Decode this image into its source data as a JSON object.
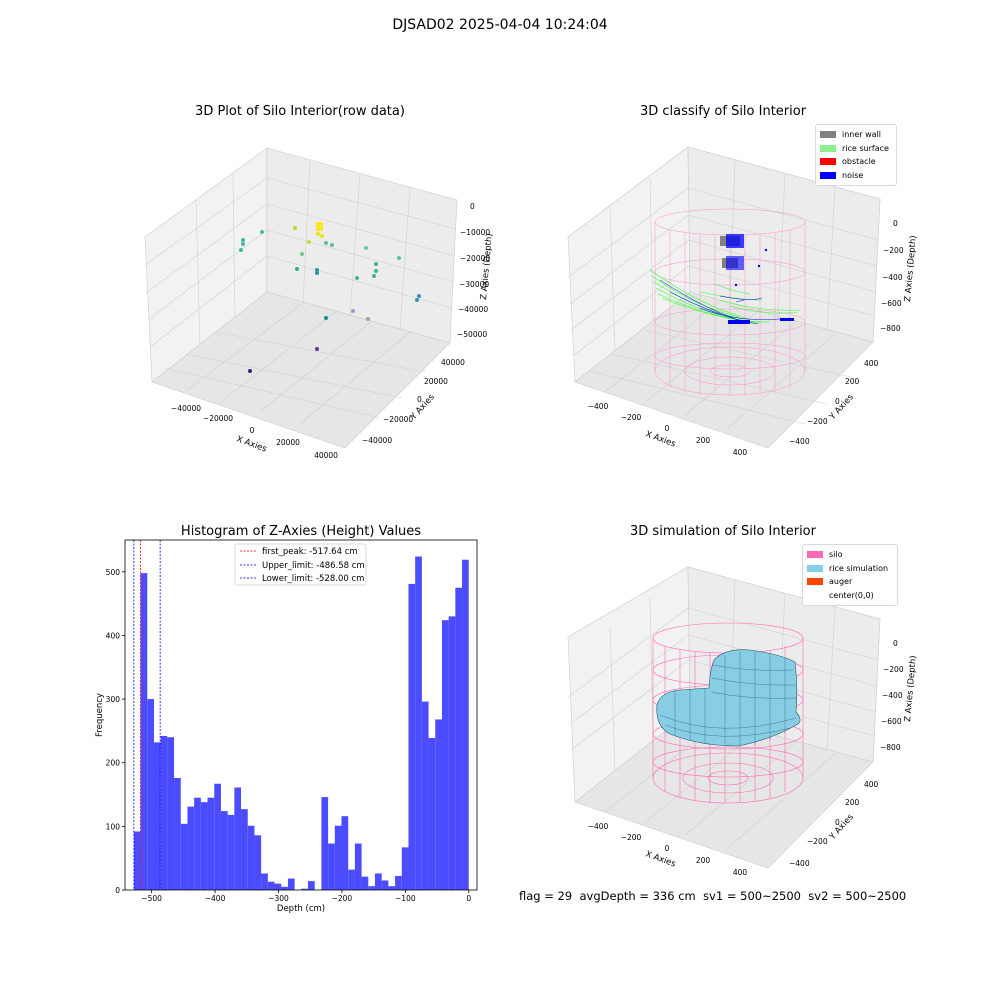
{
  "suptitle": "DJSAD02 2025-04-04 10:24:04",
  "panels": {
    "raw": {
      "title": "3D Plot of Silo Interior(row data)",
      "xlabel": "X Axies",
      "ylabel": "Y Axies",
      "zlabel": "Z Axies (Depth)",
      "xticks": [
        "−40000",
        "−20000",
        "0",
        "20000",
        "40000"
      ],
      "yticks": [
        "−40000",
        "−20000",
        "0",
        "20000",
        "40000"
      ],
      "zticks": [
        "0",
        "−10000",
        "−20000",
        "−30000",
        "−40000",
        "−50000"
      ]
    },
    "classify": {
      "title": "3D classify of Silo Interior",
      "xlabel": "X Axies",
      "ylabel": "Y Axies",
      "zlabel": "Z Axies (Depth)",
      "xticks": [
        "−400",
        "−200",
        "0",
        "200",
        "400"
      ],
      "yticks": [
        "−400",
        "−200",
        "0",
        "200",
        "400"
      ],
      "zticks": [
        "0",
        "−200",
        "−400",
        "−600",
        "−800"
      ],
      "legend": [
        {
          "label": "inner wall",
          "color": "#808080"
        },
        {
          "label": "rice surface",
          "color": "#90EE90"
        },
        {
          "label": "obstacle",
          "color": "#FF0000"
        },
        {
          "label": "noise",
          "color": "#0000FF"
        }
      ]
    },
    "simulation": {
      "title": "3D simulation of Silo Interior",
      "xlabel": "X Axies",
      "ylabel": "Y Axies",
      "zlabel": "Z Axies (Depth)",
      "xticks": [
        "−400",
        "−200",
        "0",
        "200",
        "400"
      ],
      "yticks": [
        "−400",
        "−200",
        "0",
        "200",
        "400"
      ],
      "zticks": [
        "0",
        "−200",
        "−400",
        "−600",
        "−800"
      ],
      "legend": [
        {
          "label": "silo",
          "color": "#FF69B4"
        },
        {
          "label": "rice simulation",
          "color": "#87CEEB"
        },
        {
          "label": "auger",
          "color": "#FF4500"
        },
        {
          "label": "center(0,0)",
          "color": ""
        }
      ]
    }
  },
  "status": {
    "flag": "flag = 29",
    "avg": "avgDepth = 336 cm",
    "sv1": "sv1 = 500~2500",
    "sv2": "sv2 = 500~2500"
  },
  "chart_data": {
    "type": "bar",
    "title": "Histogram of Z-Axies (Height) Values",
    "xlabel": "Depth (cm)",
    "ylabel": "Frequency",
    "xlim": [
      -542,
      13
    ],
    "ylim": [
      0,
      550
    ],
    "xticks": [
      -500,
      -400,
      -300,
      -200,
      -100,
      0
    ],
    "yticks": [
      0,
      100,
      200,
      300,
      400,
      500
    ],
    "bar_color": "#4b4bff",
    "bin_start": -528,
    "bin_width": 10.56,
    "values": [
      92,
      498,
      300,
      232,
      242,
      240,
      176,
      104,
      131,
      145,
      138,
      145,
      167,
      124,
      118,
      161,
      127,
      101,
      86,
      26,
      13,
      10,
      5,
      18,
      0,
      2,
      14,
      0,
      146,
      73,
      101,
      116,
      32,
      73,
      21,
      6,
      26,
      15,
      6,
      22,
      67,
      481,
      524,
      296,
      239,
      268,
      424,
      430,
      475,
      519
    ],
    "vlines": [
      {
        "label": "first_peak: -517.64 cm",
        "x": -517.64,
        "color": "#ff0000"
      },
      {
        "label": "Upper_limit: -486.58 cm",
        "x": -486.58,
        "color": "#0000ff"
      },
      {
        "label": "Lower_limit: -528.00 cm",
        "x": -528.0,
        "color": "#0000ff"
      }
    ],
    "legend_position": "upper center"
  }
}
